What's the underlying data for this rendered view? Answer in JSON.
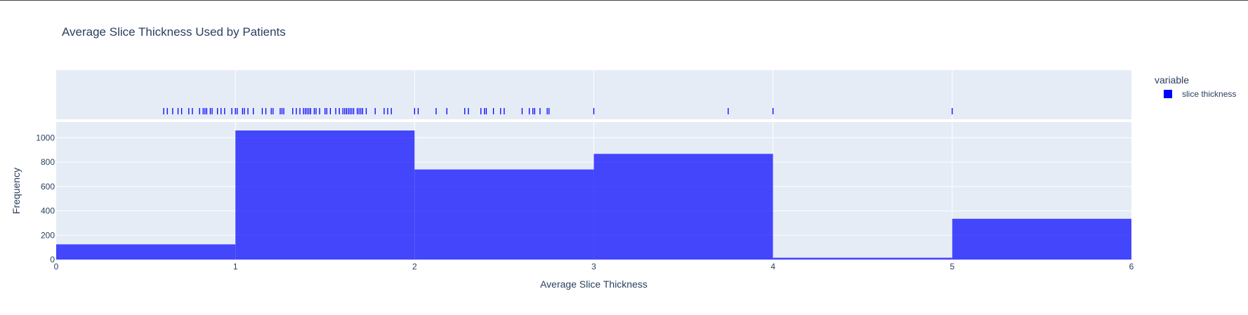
{
  "chart_data": {
    "type": "histogram",
    "title": "Average Slice Thickness Used by Patients",
    "xlabel": "Average Slice Thickness",
    "ylabel": "Frequency",
    "xlim": [
      0,
      6
    ],
    "ylim": [
      0,
      1100
    ],
    "x_ticks": [
      "0",
      "1",
      "2",
      "3",
      "4",
      "5",
      "6"
    ],
    "y_ticks": [
      "0",
      "200",
      "400",
      "600",
      "800",
      "1000"
    ],
    "bins": [
      {
        "x0": 0,
        "x1": 1,
        "count": 125
      },
      {
        "x0": 1,
        "x1": 2,
        "count": 1060
      },
      {
        "x0": 2,
        "x1": 3,
        "count": 740
      },
      {
        "x0": 3,
        "x1": 4,
        "count": 868
      },
      {
        "x0": 4,
        "x1": 5,
        "count": 15
      },
      {
        "x0": 5,
        "x1": 6,
        "count": 335
      }
    ],
    "rug_values": [
      0.6,
      0.62,
      0.65,
      0.68,
      0.7,
      0.74,
      0.76,
      0.8,
      0.82,
      0.83,
      0.84,
      0.86,
      0.87,
      0.9,
      0.92,
      0.94,
      0.98,
      1.0,
      1.01,
      1.04,
      1.05,
      1.07,
      1.1,
      1.15,
      1.17,
      1.2,
      1.21,
      1.25,
      1.26,
      1.27,
      1.32,
      1.34,
      1.36,
      1.38,
      1.39,
      1.4,
      1.41,
      1.42,
      1.44,
      1.45,
      1.47,
      1.5,
      1.51,
      1.53,
      1.56,
      1.58,
      1.6,
      1.61,
      1.62,
      1.63,
      1.64,
      1.65,
      1.66,
      1.68,
      1.69,
      1.7,
      1.71,
      1.73,
      1.78,
      1.83,
      1.85,
      1.87,
      2.0,
      2.02,
      2.12,
      2.18,
      2.28,
      2.3,
      2.37,
      2.39,
      2.4,
      2.44,
      2.48,
      2.5,
      2.6,
      2.64,
      2.66,
      2.67,
      2.7,
      2.74,
      2.75,
      3.0,
      3.75,
      4.0,
      5.0
    ],
    "legend": {
      "title": "variable",
      "position": "top-right",
      "items": [
        {
          "name": "slice thickness",
          "color": "#0000ff"
        }
      ]
    },
    "colors": {
      "bar": "#0000ff",
      "rug": "#0000ff",
      "plot_bg": "#e5ecf6",
      "grid": "#ffffff",
      "text": "#2a3f5f"
    },
    "grid": true
  }
}
